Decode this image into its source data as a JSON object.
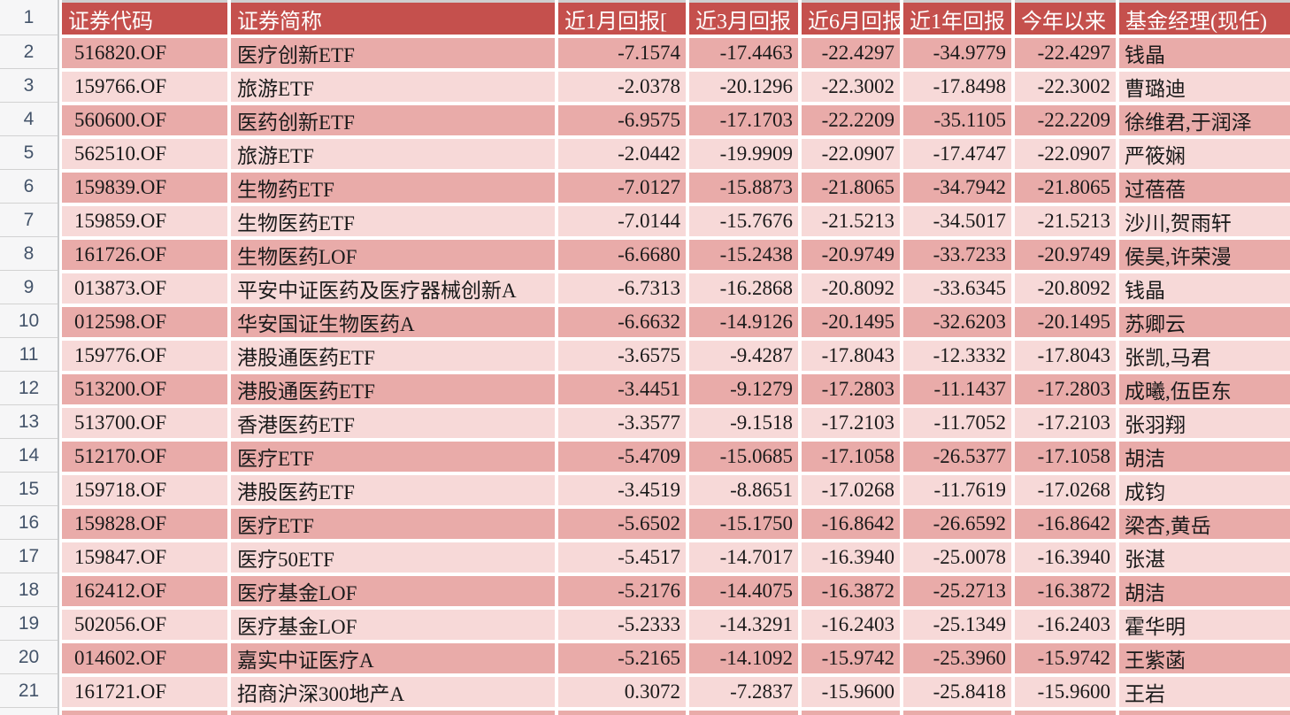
{
  "colors": {
    "header_bg": "#C5504D",
    "band_dark": "#E9ABA9",
    "band_light": "#F7D9D8",
    "header_text": "#FFFFFF",
    "gutter_text": "#44546A"
  },
  "gutter": {
    "header_row_number": "1"
  },
  "table": {
    "columns": [
      "证券代码",
      "证券简称",
      "近1月回报[",
      "近3月回报",
      "近6月回报",
      "近1年回报",
      "今年以来",
      "基金经理(现任)"
    ],
    "rows": [
      {
        "n": "2",
        "code": "516820.OF",
        "name": "医疗创新ETF",
        "m1": "-7.1574",
        "m3": "-17.4463",
        "m6": "-22.4297",
        "y1": "-34.9779",
        "ytd": "-22.4297",
        "mgr": "钱晶"
      },
      {
        "n": "3",
        "code": "159766.OF",
        "name": "旅游ETF",
        "m1": "-2.0378",
        "m3": "-20.1296",
        "m6": "-22.3002",
        "y1": "-17.8498",
        "ytd": "-22.3002",
        "mgr": "曹璐迪"
      },
      {
        "n": "4",
        "code": "560600.OF",
        "name": "医药创新ETF",
        "m1": "-6.9575",
        "m3": "-17.1703",
        "m6": "-22.2209",
        "y1": "-35.1105",
        "ytd": "-22.2209",
        "mgr": "徐维君,于润泽"
      },
      {
        "n": "5",
        "code": "562510.OF",
        "name": "旅游ETF",
        "m1": "-2.0442",
        "m3": "-19.9909",
        "m6": "-22.0907",
        "y1": "-17.4747",
        "ytd": "-22.0907",
        "mgr": "严筱娴"
      },
      {
        "n": "6",
        "code": "159839.OF",
        "name": "生物药ETF",
        "m1": "-7.0127",
        "m3": "-15.8873",
        "m6": "-21.8065",
        "y1": "-34.7942",
        "ytd": "-21.8065",
        "mgr": "过蓓蓓"
      },
      {
        "n": "7",
        "code": "159859.OF",
        "name": "生物医药ETF",
        "m1": "-7.0144",
        "m3": "-15.7676",
        "m6": "-21.5213",
        "y1": "-34.5017",
        "ytd": "-21.5213",
        "mgr": "沙川,贺雨轩"
      },
      {
        "n": "8",
        "code": "161726.OF",
        "name": "生物医药LOF",
        "m1": "-6.6680",
        "m3": "-15.2438",
        "m6": "-20.9749",
        "y1": "-33.7233",
        "ytd": "-20.9749",
        "mgr": "侯昊,许荣漫"
      },
      {
        "n": "9",
        "code": "013873.OF",
        "name": "平安中证医药及医疗器械创新A",
        "m1": "-6.7313",
        "m3": "-16.2868",
        "m6": "-20.8092",
        "y1": "-33.6345",
        "ytd": "-20.8092",
        "mgr": "钱晶"
      },
      {
        "n": "10",
        "code": "012598.OF",
        "name": "华安国证生物医药A",
        "m1": "-6.6632",
        "m3": "-14.9126",
        "m6": "-20.1495",
        "y1": "-32.6203",
        "ytd": "-20.1495",
        "mgr": "苏卿云"
      },
      {
        "n": "11",
        "code": "159776.OF",
        "name": "港股通医药ETF",
        "m1": "-3.6575",
        "m3": "-9.4287",
        "m6": "-17.8043",
        "y1": "-12.3332",
        "ytd": "-17.8043",
        "mgr": "张凯,马君"
      },
      {
        "n": "12",
        "code": "513200.OF",
        "name": "港股通医药ETF",
        "m1": "-3.4451",
        "m3": "-9.1279",
        "m6": "-17.2803",
        "y1": "-11.1437",
        "ytd": "-17.2803",
        "mgr": "成曦,伍臣东"
      },
      {
        "n": "13",
        "code": "513700.OF",
        "name": "香港医药ETF",
        "m1": "-3.3577",
        "m3": "-9.1518",
        "m6": "-17.2103",
        "y1": "-11.7052",
        "ytd": "-17.2103",
        "mgr": "张羽翔"
      },
      {
        "n": "14",
        "code": "512170.OF",
        "name": "医疗ETF",
        "m1": "-5.4709",
        "m3": "-15.0685",
        "m6": "-17.1058",
        "y1": "-26.5377",
        "ytd": "-17.1058",
        "mgr": "胡洁"
      },
      {
        "n": "15",
        "code": "159718.OF",
        "name": "港股医药ETF",
        "m1": "-3.4519",
        "m3": "-8.8651",
        "m6": "-17.0268",
        "y1": "-11.7619",
        "ytd": "-17.0268",
        "mgr": "成钧"
      },
      {
        "n": "16",
        "code": "159828.OF",
        "name": "医疗ETF",
        "m1": "-5.6502",
        "m3": "-15.1750",
        "m6": "-16.8642",
        "y1": "-26.6592",
        "ytd": "-16.8642",
        "mgr": "梁杏,黄岳"
      },
      {
        "n": "17",
        "code": "159847.OF",
        "name": "医疗50ETF",
        "m1": "-5.4517",
        "m3": "-14.7017",
        "m6": "-16.3940",
        "y1": "-25.0078",
        "ytd": "-16.3940",
        "mgr": "张湛"
      },
      {
        "n": "18",
        "code": "162412.OF",
        "name": "医疗基金LOF",
        "m1": "-5.2176",
        "m3": "-14.4075",
        "m6": "-16.3872",
        "y1": "-25.2713",
        "ytd": "-16.3872",
        "mgr": "胡洁"
      },
      {
        "n": "19",
        "code": "502056.OF",
        "name": "医疗基金LOF",
        "m1": "-5.2333",
        "m3": "-14.3291",
        "m6": "-16.2403",
        "y1": "-25.1349",
        "ytd": "-16.2403",
        "mgr": "霍华明"
      },
      {
        "n": "20",
        "code": "014602.OF",
        "name": "嘉实中证医疗A",
        "m1": "-5.2165",
        "m3": "-14.1092",
        "m6": "-15.9742",
        "y1": "-25.3960",
        "ytd": "-15.9742",
        "mgr": "王紫菡"
      },
      {
        "n": "21",
        "code": "161721.OF",
        "name": "招商沪深300地产A",
        "m1": "0.3072",
        "m3": "-7.2837",
        "m6": "-15.9600",
        "y1": "-25.8418",
        "ytd": "-15.9600",
        "mgr": "王岩"
      }
    ]
  }
}
